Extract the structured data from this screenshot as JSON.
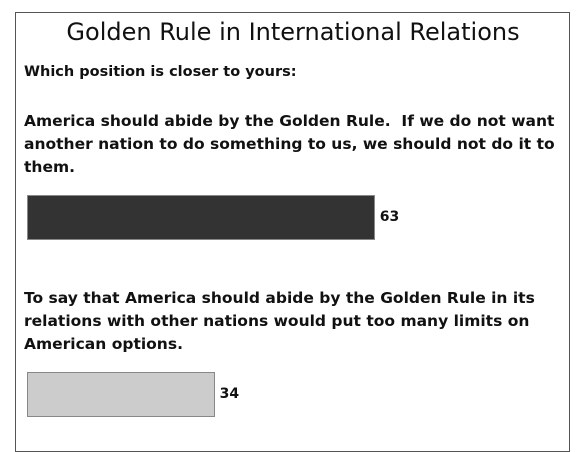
{
  "chart_data": {
    "type": "bar",
    "title": "Golden Rule in International Relations",
    "subtitle": "Which position is closer to yours:",
    "categories": [
      "America should abide by the Golden Rule.  If we do not want another nation to do something to us, we should not do it to them.",
      "To say that America should abide by the Golden Rule in its relations with other nations would put too many limits on American options."
    ],
    "values": [
      63,
      34
    ],
    "colors": [
      "#333333",
      "#cccccc"
    ]
  }
}
